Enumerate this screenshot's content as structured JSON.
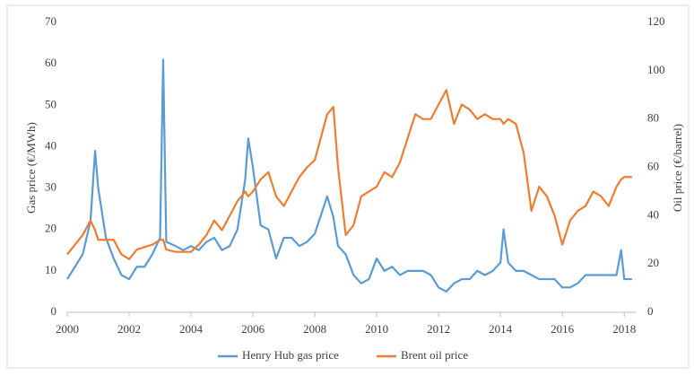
{
  "chart_data": {
    "type": "line",
    "x": [
      2000.0,
      2000.25,
      2000.5,
      2000.75,
      2000.9,
      2001.0,
      2001.25,
      2001.5,
      2001.75,
      2002.0,
      2002.25,
      2002.5,
      2002.75,
      2003.0,
      2003.1,
      2003.2,
      2003.5,
      2003.75,
      2004.0,
      2004.25,
      2004.5,
      2004.75,
      2005.0,
      2005.25,
      2005.5,
      2005.75,
      2005.85,
      2006.0,
      2006.25,
      2006.5,
      2006.75,
      2007.0,
      2007.25,
      2007.5,
      2007.75,
      2008.0,
      2008.4,
      2008.6,
      2008.75,
      2009.0,
      2009.25,
      2009.5,
      2009.75,
      2010.0,
      2010.25,
      2010.5,
      2010.75,
      2011.0,
      2011.25,
      2011.5,
      2011.75,
      2012.0,
      2012.25,
      2012.5,
      2012.75,
      2013.0,
      2013.25,
      2013.5,
      2013.75,
      2014.0,
      2014.1,
      2014.25,
      2014.5,
      2014.75,
      2015.0,
      2015.25,
      2015.5,
      2015.75,
      2016.0,
      2016.25,
      2016.5,
      2016.75,
      2017.0,
      2017.25,
      2017.5,
      2017.75,
      2017.9,
      2018.0,
      2018.25
    ],
    "series": [
      {
        "name": "Henry Hub gas price",
        "color": "#5b9bd5",
        "values": [
          8,
          11,
          14,
          22,
          39,
          30,
          18,
          13,
          9,
          8,
          11,
          11,
          14,
          18,
          61,
          17,
          16,
          15,
          16,
          15,
          17,
          18,
          15,
          16,
          20,
          32,
          42,
          35,
          21,
          20,
          13,
          18,
          18,
          16,
          17,
          19,
          28,
          23,
          16,
          14,
          9,
          7,
          8,
          13,
          10,
          11,
          9,
          10,
          10,
          10,
          9,
          6,
          5,
          7,
          8,
          8,
          10,
          9,
          10,
          12,
          20,
          12,
          10,
          10,
          9,
          8,
          8,
          8,
          6,
          6,
          7,
          9,
          9,
          9,
          9,
          9,
          15,
          8,
          8
        ]
      },
      {
        "name": "Brent oil price",
        "color": "#ed7d31",
        "axis": "y2",
        "values": [
          24,
          28,
          32,
          38,
          34,
          30,
          30,
          30,
          24,
          22,
          26,
          27,
          28,
          30,
          30,
          26,
          25,
          25,
          25,
          28,
          32,
          38,
          34,
          40,
          46,
          50,
          48,
          50,
          55,
          58,
          48,
          44,
          50,
          56,
          60,
          63,
          82,
          85,
          60,
          32,
          36,
          48,
          50,
          52,
          58,
          56,
          62,
          72,
          82,
          80,
          80,
          86,
          92,
          78,
          86,
          84,
          80,
          82,
          80,
          80,
          78,
          80,
          78,
          66,
          42,
          52,
          48,
          40,
          28,
          38,
          42,
          44,
          50,
          48,
          44,
          52,
          55,
          56,
          56
        ]
      }
    ],
    "y_label": "Gas price (€/MWh)",
    "y2_label": "Oil price (€/barrel)",
    "xlim": [
      2000,
      2018.4
    ],
    "xticks": [
      2000,
      2002,
      2004,
      2006,
      2008,
      2010,
      2012,
      2014,
      2016,
      2018
    ],
    "ylim": [
      0,
      70
    ],
    "yticks": [
      0,
      10,
      20,
      30,
      40,
      50,
      60,
      70
    ],
    "y2lim": [
      0,
      120
    ],
    "y2ticks": [
      0,
      20,
      40,
      60,
      80,
      100,
      120
    ],
    "legend": "bottom"
  }
}
